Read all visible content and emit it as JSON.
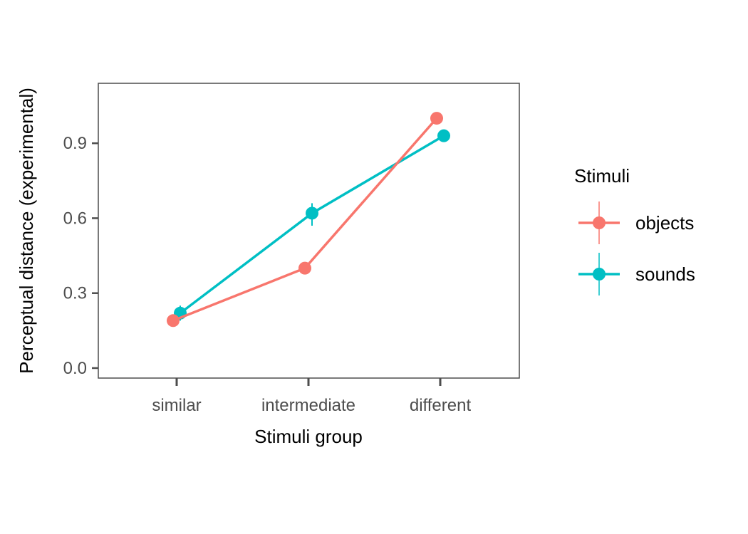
{
  "chart_data": {
    "type": "line",
    "title": "",
    "xlabel": "Stimuli group",
    "ylabel": "Perceptual distance (experimental)",
    "categories": [
      "similar",
      "intermediate",
      "different"
    ],
    "ylim": [
      -0.04,
      1.14
    ],
    "yticks": [
      0.0,
      0.3,
      0.6,
      0.9
    ],
    "ytick_labels": [
      "0.0",
      "0.3",
      "0.6",
      "0.9"
    ],
    "grid": false,
    "legend": {
      "title": "Stimuli",
      "position": "right"
    },
    "series": [
      {
        "name": "objects",
        "color": "#F8766D",
        "values": [
          0.19,
          0.4,
          1.0
        ],
        "error_low": [
          0.19,
          0.4,
          1.0
        ],
        "error_high": [
          0.19,
          0.4,
          1.0
        ]
      },
      {
        "name": "sounds",
        "color": "#00BFC4",
        "values": [
          0.22,
          0.62,
          0.93
        ],
        "error_low": [
          0.19,
          0.57,
          0.92
        ],
        "error_high": [
          0.25,
          0.66,
          0.94
        ]
      }
    ]
  }
}
